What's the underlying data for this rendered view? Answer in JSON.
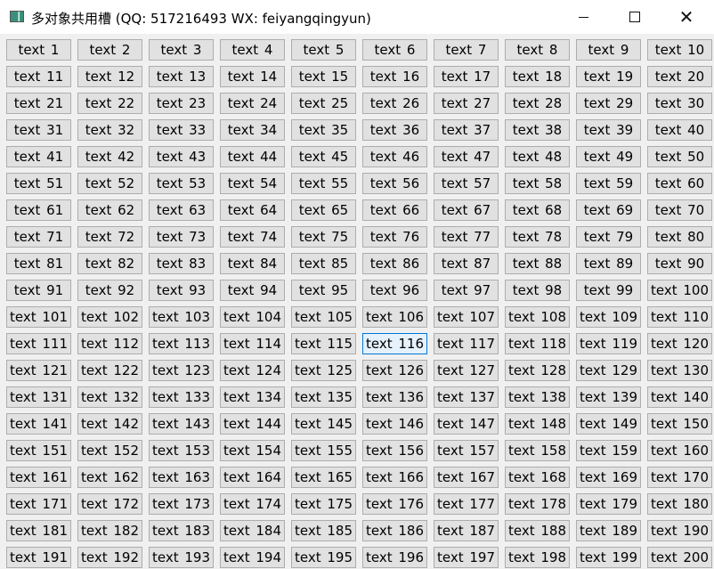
{
  "window": {
    "title": "多对象共用槽 (QQ: 517216493 WX: feiyangqingyun)",
    "minimize_icon": "minimize-icon",
    "maximize_icon": "maximize-icon",
    "close_icon": "close-icon",
    "close_glyph": "✕"
  },
  "colors": {
    "button_bg": "#e1e1e1",
    "button_border": "#adadad",
    "hover_bg": "#e5f1fb",
    "hover_border": "#0078d7"
  },
  "grid": {
    "columns": 10,
    "hovered_index": 115,
    "buttons": [
      "text 1",
      "text 2",
      "text 3",
      "text 4",
      "text 5",
      "text 6",
      "text 7",
      "text 8",
      "text 9",
      "text 10",
      "text 11",
      "text 12",
      "text 13",
      "text 14",
      "text 15",
      "text 16",
      "text 17",
      "text 18",
      "text 19",
      "text 20",
      "text 21",
      "text 22",
      "text 23",
      "text 24",
      "text 25",
      "text 26",
      "text 27",
      "text 28",
      "text 29",
      "text 30",
      "text 31",
      "text 32",
      "text 33",
      "text 34",
      "text 35",
      "text 36",
      "text 37",
      "text 38",
      "text 39",
      "text 40",
      "text 41",
      "text 42",
      "text 43",
      "text 44",
      "text 45",
      "text 46",
      "text 47",
      "text 48",
      "text 49",
      "text 50",
      "text 51",
      "text 52",
      "text 53",
      "text 54",
      "text 55",
      "text 56",
      "text 57",
      "text 58",
      "text 59",
      "text 60",
      "text 61",
      "text 62",
      "text 63",
      "text 64",
      "text 65",
      "text 66",
      "text 67",
      "text 68",
      "text 69",
      "text 70",
      "text 71",
      "text 72",
      "text 73",
      "text 74",
      "text 75",
      "text 76",
      "text 77",
      "text 78",
      "text 79",
      "text 80",
      "text 81",
      "text 82",
      "text 83",
      "text 84",
      "text 85",
      "text 86",
      "text 87",
      "text 88",
      "text 89",
      "text 90",
      "text 91",
      "text 92",
      "text 93",
      "text 94",
      "text 95",
      "text 96",
      "text 97",
      "text 98",
      "text 99",
      "text 100",
      "text 101",
      "text 102",
      "text 103",
      "text 104",
      "text 105",
      "text 106",
      "text 107",
      "text 108",
      "text 109",
      "text 110",
      "text 111",
      "text 112",
      "text 113",
      "text 114",
      "text 115",
      "text 116",
      "text 117",
      "text 118",
      "text 119",
      "text 120",
      "text 121",
      "text 122",
      "text 123",
      "text 124",
      "text 125",
      "text 126",
      "text 127",
      "text 128",
      "text 129",
      "text 130",
      "text 131",
      "text 132",
      "text 133",
      "text 134",
      "text 135",
      "text 136",
      "text 137",
      "text 138",
      "text 139",
      "text 140",
      "text 141",
      "text 142",
      "text 143",
      "text 144",
      "text 145",
      "text 146",
      "text 147",
      "text 148",
      "text 149",
      "text 150",
      "text 151",
      "text 152",
      "text 153",
      "text 154",
      "text 155",
      "text 156",
      "text 157",
      "text 158",
      "text 159",
      "text 160",
      "text 161",
      "text 162",
      "text 163",
      "text 164",
      "text 165",
      "text 166",
      "text 167",
      "text 168",
      "text 169",
      "text 170",
      "text 171",
      "text 172",
      "text 173",
      "text 174",
      "text 175",
      "text 176",
      "text 177",
      "text 178",
      "text 179",
      "text 180",
      "text 181",
      "text 182",
      "text 183",
      "text 184",
      "text 185",
      "text 186",
      "text 187",
      "text 188",
      "text 189",
      "text 190",
      "text 191",
      "text 192",
      "text 193",
      "text 194",
      "text 195",
      "text 196",
      "text 197",
      "text 198",
      "text 199",
      "text 200"
    ]
  }
}
